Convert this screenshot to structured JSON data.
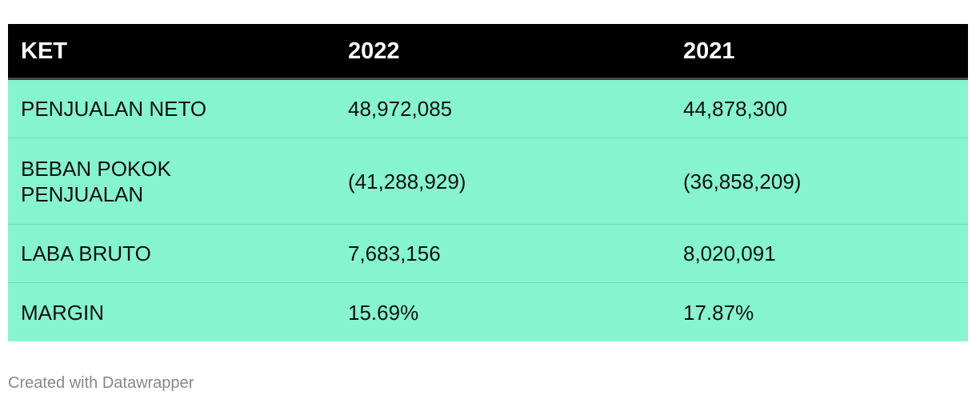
{
  "chart_data": {
    "type": "table",
    "columns": [
      "KET",
      "2022",
      "2021"
    ],
    "rows": [
      [
        "PENJUALAN NETO",
        "48,972,085",
        "44,878,300"
      ],
      [
        "BEBAN POKOK PENJUALAN",
        "(41,288,929)",
        "(36,858,209)"
      ],
      [
        "LABA BRUTO",
        "7,683,156",
        "8,020,091"
      ],
      [
        "MARGIN",
        "15.69%",
        "17.87%"
      ]
    ]
  },
  "colors": {
    "header_bg": "#000000",
    "header_text": "#ffffff",
    "row_bg": "#86f4cf"
  },
  "footer": {
    "credit": "Created with Datawrapper"
  }
}
